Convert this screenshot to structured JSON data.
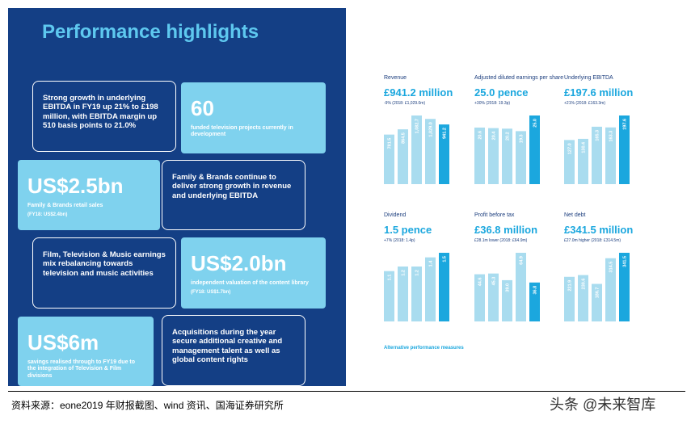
{
  "left_panel": {
    "title": "Performance highlights",
    "cards": [
      {
        "text": "Strong growth in underlying EBITDA in FY19 up 21% to £198 million, with EBITDA margin up 510 basis points to 21.0%"
      },
      {
        "big": "60",
        "text": "funded television projects currently in development"
      },
      {
        "big": "US$2.5bn",
        "text": "Family & Brands retail sales",
        "note": "(FY18: US$2.4bn)"
      },
      {
        "text": "Family & Brands continue to deliver strong growth in revenue and underlying EBITDA"
      },
      {
        "text": "Film, Television & Music earnings mix rebalancing towards television and music activities"
      },
      {
        "big": "US$2.0bn",
        "text": "independent valuation of the content library",
        "note": "(FY18: US$1.7bn)"
      },
      {
        "big": "US$6m",
        "text": "savings realised through to FY19 due to the integration of Television & Film divisions"
      },
      {
        "text": "Acquisitions during the year secure additional creative and management talent as well as global content rights"
      }
    ]
  },
  "chart_data": [
    {
      "type": "bar",
      "title": "Revenue",
      "headline": "£941.2 million",
      "subtitle": "-9% (2018: £1,029.0m)",
      "color": "#a9dcef",
      "highlight_color": "#1ba7de",
      "values": [
        781.5,
        864.5,
        1082.7,
        1029.0,
        941.2
      ],
      "value_labels": [
        "781.5",
        "864.5",
        "1,082.7",
        "1,029.0",
        "941.2"
      ]
    },
    {
      "type": "bar",
      "title": "Adjusted diluted earnings per share",
      "headline": "25.0 pence",
      "subtitle": "+30% (2018: 19.3p)",
      "color": "#a9dcef",
      "highlight_color": "#1ba7de",
      "values": [
        20.6,
        20.4,
        20.2,
        19.3,
        25.0
      ],
      "value_labels": [
        "20.6",
        "20.4",
        "20.2",
        "19.3",
        "25.0"
      ]
    },
    {
      "type": "bar",
      "title": "Underlying EBITDA",
      "headline": "£197.6 million",
      "subtitle": "+21% (2018: £163.3m)",
      "color": "#a9dcef",
      "highlight_color": "#1ba7de",
      "values": [
        127.0,
        130.4,
        165.3,
        163.3,
        197.6
      ],
      "value_labels": [
        "127.0",
        "130.4",
        "165.3",
        "163.3",
        "197.6"
      ]
    },
    {
      "type": "bar",
      "title": "Dividend",
      "headline": "1.5 pence",
      "subtitle": "+7% (2018: 1.4p)",
      "color": "#a9dcef",
      "highlight_color": "#1ba7de",
      "values": [
        1.1,
        1.2,
        1.2,
        1.4,
        1.5
      ],
      "value_labels": [
        "1.1",
        "1.2",
        "1.2",
        "1.4",
        "1.5"
      ]
    },
    {
      "type": "bar",
      "title": "Profit before tax",
      "headline": "£36.8 million",
      "subtitle": "£28.1m lower (2018: £64.9m)",
      "color": "#a9dcef",
      "highlight_color": "#1ba7de",
      "values": [
        44.6,
        45.3,
        39.0,
        64.9,
        36.8
      ],
      "value_labels": [
        "44.6",
        "45.3",
        "39.0",
        "64.9",
        "36.8"
      ]
    },
    {
      "type": "bar",
      "title": "Net debt",
      "headline": "£341.5 million",
      "subtitle": "£27.0m higher (2018: £314.5m)",
      "color": "#a9dcef",
      "highlight_color": "#1ba7de",
      "values": [
        221.9,
        230.6,
        186.7,
        314.5,
        341.5
      ],
      "value_labels": [
        "221.9",
        "230.6",
        "186.7",
        "314.5",
        "341.5"
      ]
    }
  ],
  "apm_title": "Alternative performance measures",
  "footer": {
    "source": "资料来源：eone2019 年财报截图、wind 资讯、国海证券研究所",
    "watermark": "头条 @未来智库"
  }
}
